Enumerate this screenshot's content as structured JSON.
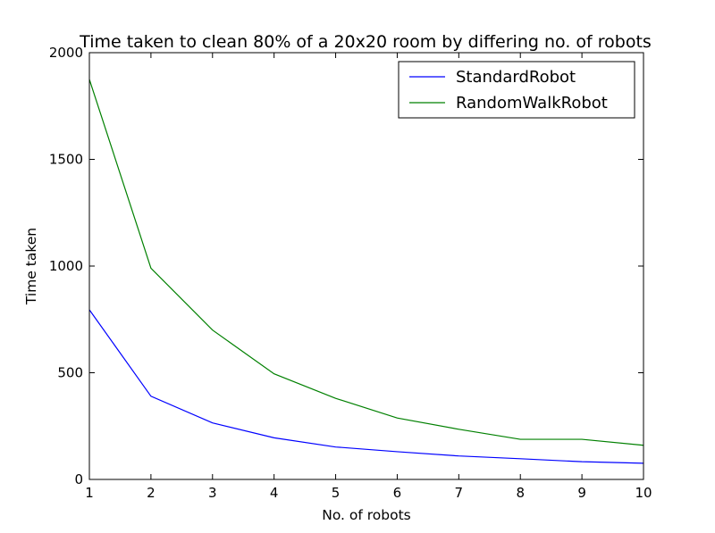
{
  "chart_data": {
    "type": "line",
    "title": "Time taken to clean 80% of a 20x20 room by differing no. of robots",
    "xlabel": "No. of robots",
    "ylabel": "Time taken",
    "x": [
      1,
      2,
      3,
      4,
      5,
      6,
      7,
      8,
      9,
      10
    ],
    "xlim": [
      1,
      10
    ],
    "ylim": [
      0,
      2000
    ],
    "xticks": [
      "1",
      "2",
      "3",
      "4",
      "5",
      "6",
      "7",
      "8",
      "9",
      "10"
    ],
    "yticks": [
      "0",
      "500",
      "1000",
      "1500",
      "2000"
    ],
    "grid": false,
    "legend_position": "top-right",
    "series": [
      {
        "name": "StandardRobot",
        "color": "#0000ff",
        "values": [
          795,
          390,
          265,
          195,
          152,
          130,
          110,
          97,
          83,
          76
        ]
      },
      {
        "name": "RandomWalkRobot",
        "color": "#008000",
        "values": [
          1875,
          990,
          700,
          495,
          380,
          288,
          235,
          188,
          188,
          160
        ]
      }
    ]
  }
}
